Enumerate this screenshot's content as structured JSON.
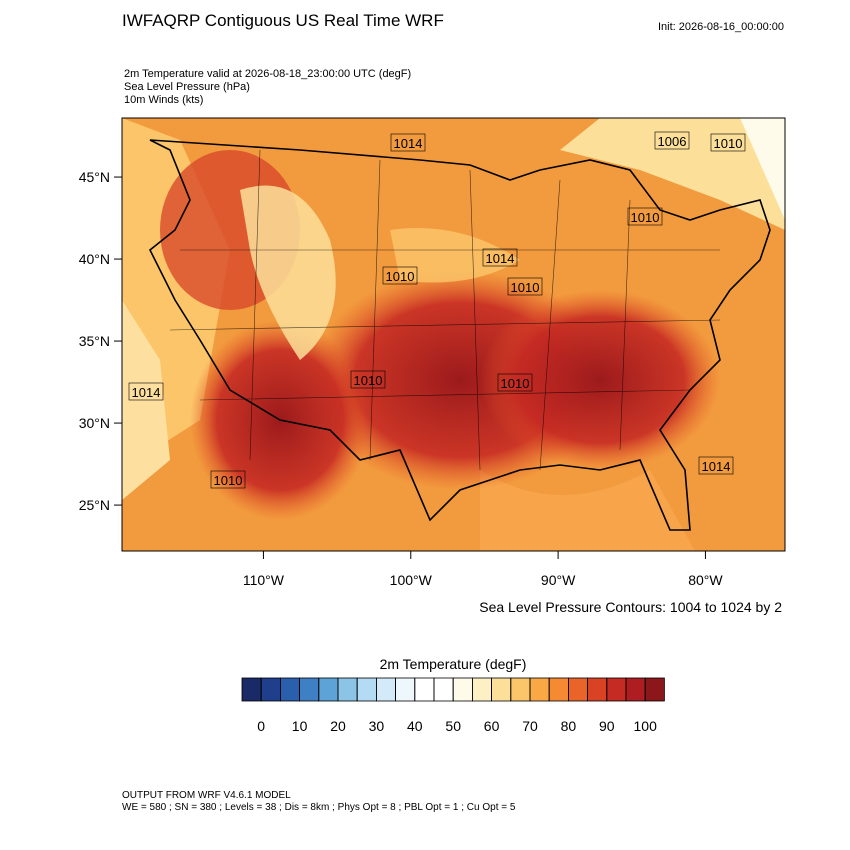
{
  "header": {
    "title": "IWFAQRP Contiguous US Real Time WRF",
    "init": "Init: 2026-08-16_00:00:00",
    "fields": [
      "2m Temperature valid at 2026-08-18_23:00:00 UTC   (degF)",
      "Sea Level Pressure   (hPa)",
      "10m Winds   (kts)"
    ]
  },
  "map": {
    "lonlim": [
      -119.6,
      -74.6
    ],
    "latlim": [
      22.2,
      48.6
    ],
    "lon_ticks": [
      {
        "value": -110,
        "label": "110°W"
      },
      {
        "value": -100,
        "label": "100°W"
      },
      {
        "value": -90,
        "label": "90°W"
      },
      {
        "value": -80,
        "label": "80°W"
      }
    ],
    "lat_ticks": [
      {
        "value": 25,
        "label": "25°N"
      },
      {
        "value": 30,
        "label": "30°N"
      },
      {
        "value": 35,
        "label": "35°N"
      },
      {
        "value": 40,
        "label": "40°N"
      },
      {
        "value": 45,
        "label": "45°N"
      }
    ],
    "contour_labels": [
      "1014",
      "1006",
      "1010",
      "1014",
      "1010",
      "1014",
      "1010",
      "1010",
      "1010",
      "1014",
      "1010",
      "1010"
    ],
    "contour_note": "Sea Level Pressure Contours: 1004 to 1024 by 2"
  },
  "colorbar": {
    "title": "2m Temperature  (degF)",
    "levels": [
      0,
      5,
      10,
      15,
      20,
      25,
      30,
      35,
      40,
      45,
      50,
      55,
      60,
      65,
      70,
      75,
      80,
      85,
      90,
      95,
      100
    ],
    "colors": [
      "#1a2a66",
      "#1f3f8c",
      "#2a5fae",
      "#3f7fc4",
      "#5ea3d8",
      "#8cc4e8",
      "#b3dcf4",
      "#d3ebf8",
      "#eef7fb",
      "#ffffff",
      "#ffffff",
      "#fffbea",
      "#fdf0c4",
      "#fcdf99",
      "#fbc56a",
      "#f9a845",
      "#f58a33",
      "#ea6328",
      "#d94324",
      "#c52a23",
      "#ad1d21",
      "#8c171b"
    ],
    "ticks": [
      0,
      10,
      20,
      30,
      40,
      50,
      60,
      70,
      80,
      90,
      100
    ]
  },
  "footer": {
    "model": "OUTPUT FROM WRF V4.6.1 MODEL",
    "settings": "WE = 580 ; SN = 380 ; Levels = 38 ; Dis = 8km ; Phys Opt = 8 ; PBL Opt = 1 ; Cu Opt = 5"
  }
}
